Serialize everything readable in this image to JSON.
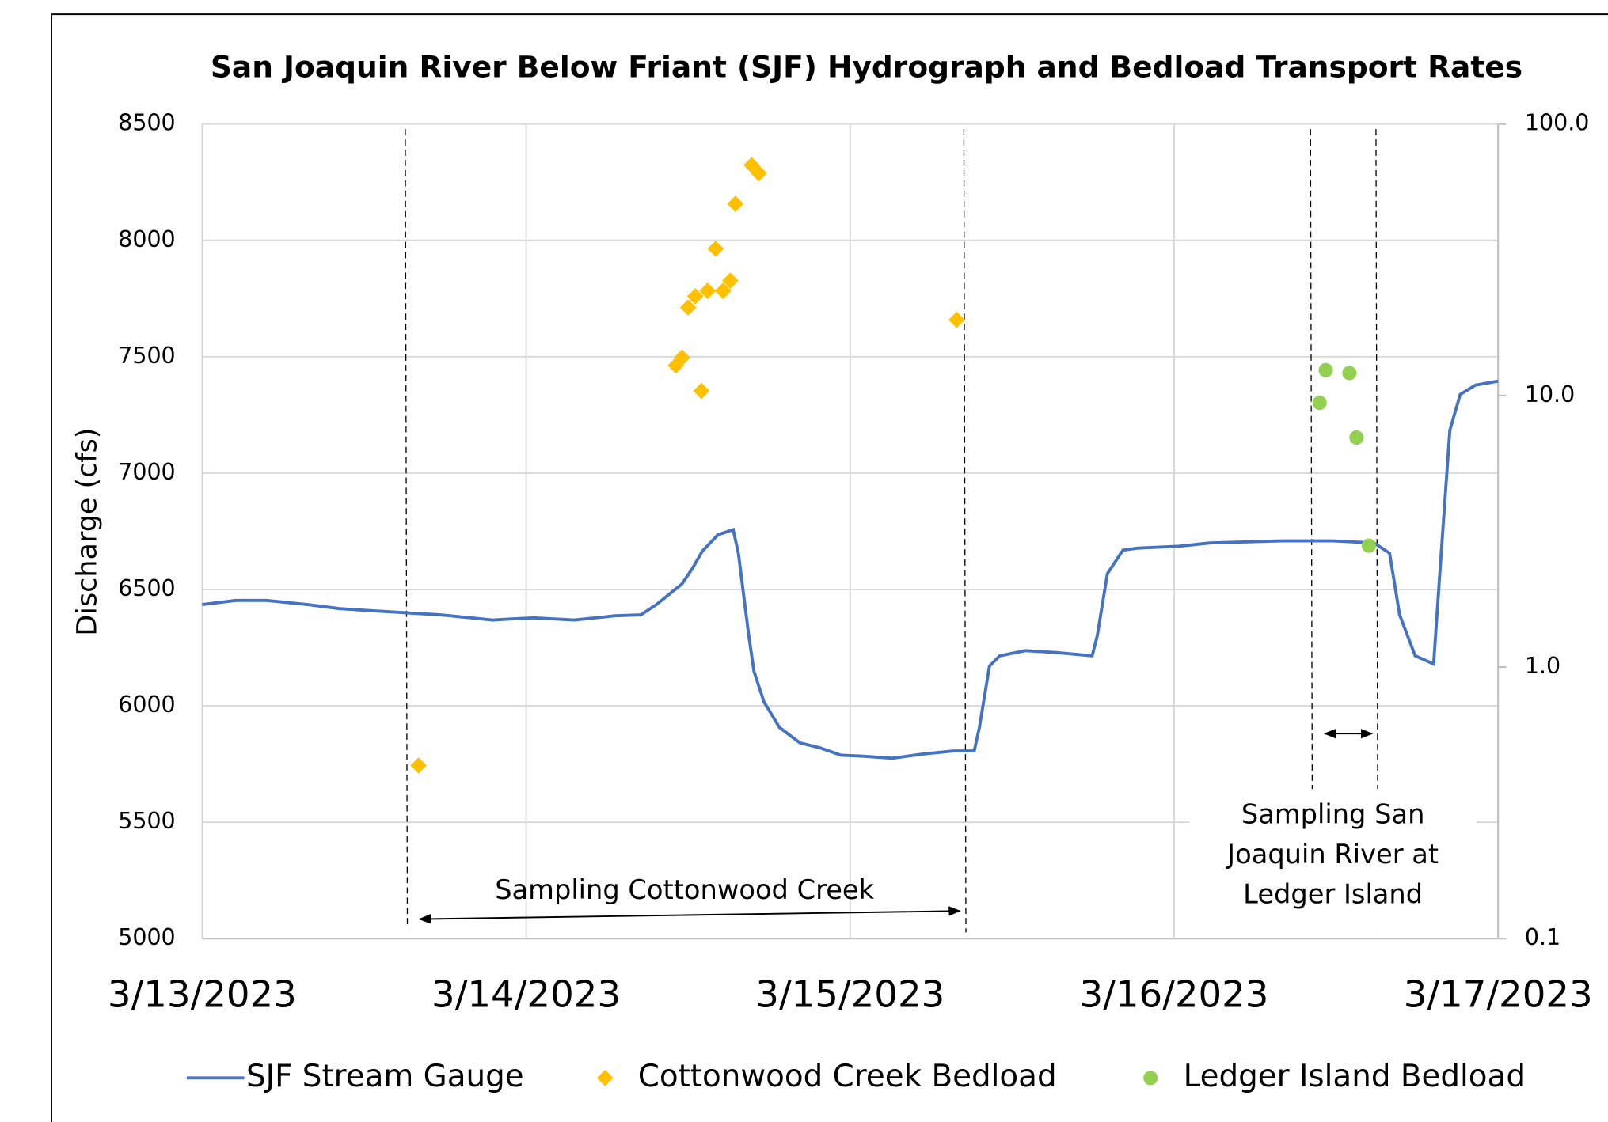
{
  "chart_data": {
    "type": "line",
    "title": "San Joaquin River Below Friant (SJF) Hydrograph and Bedload Transport Rates",
    "ylabel": "Discharge (cfs)",
    "xlim": [
      0,
      4
    ],
    "xticks": [
      {
        "value": 0,
        "label": "3/13/2023"
      },
      {
        "value": 1,
        "label": "3/14/2023"
      },
      {
        "value": 2,
        "label": "3/15/2023"
      },
      {
        "value": 3,
        "label": "3/16/2023"
      },
      {
        "value": 4,
        "label": "3/17/2023"
      }
    ],
    "ylim": [
      5000,
      8500
    ],
    "yticks": [
      5000,
      5500,
      6000,
      6500,
      7000,
      7500,
      8000,
      8500
    ],
    "y2lim": [
      0.1,
      100
    ],
    "y2log": true,
    "y2ticks": [
      0.1,
      {
        "value": 1,
        "label": "1.0"
      },
      {
        "value": 10,
        "label": "10.0"
      },
      {
        "value": 100,
        "label": "100.0"
      }
    ],
    "grid": true,
    "legend": "bottom",
    "series": [
      {
        "name": "SJF Stream Gauge",
        "type": "line",
        "color": "#4472c4",
        "x": [
          0,
          0.104,
          0.199,
          0.326,
          0.421,
          0.516,
          0.627,
          0.737,
          0.896,
          1.022,
          1.149,
          1.275,
          1.354,
          1.402,
          1.449,
          1.481,
          1.513,
          1.544,
          1.592,
          1.639,
          1.655,
          1.687,
          1.703,
          1.734,
          1.782,
          1.845,
          1.908,
          1.972,
          2.035,
          2.13,
          2.225,
          2.32,
          2.383,
          2.399,
          2.43,
          2.462,
          2.541,
          2.636,
          2.747,
          2.763,
          2.794,
          2.842,
          2.889,
          3.016,
          3.111,
          3.332,
          3.491,
          3.617,
          3.665,
          3.696,
          3.744,
          3.801,
          3.82,
          3.851,
          3.883,
          3.93,
          4
        ],
        "values": [
          6435,
          6453,
          6453,
          6435,
          6418,
          6409,
          6400,
          6391,
          6369,
          6378,
          6369,
          6387,
          6391,
          6435,
          6488,
          6524,
          6590,
          6665,
          6735,
          6757,
          6656,
          6303,
          6149,
          6017,
          5907,
          5841,
          5819,
          5788,
          5784,
          5775,
          5793,
          5806,
          5806,
          5907,
          6171,
          6215,
          6237,
          6229,
          6215,
          6303,
          6568,
          6669,
          6678,
          6686,
          6700,
          6709,
          6709,
          6700,
          6656,
          6391,
          6215,
          6180,
          6568,
          7184,
          7338,
          7378,
          7395
        ]
      },
      {
        "name": "Cottonwood Creek Bedload",
        "type": "scatter",
        "marker": "diamond",
        "axis": "y2",
        "color": "#ffc000",
        "x": [
          0.668,
          1.462,
          1.481,
          1.541,
          1.5,
          1.522,
          1.56,
          1.608,
          1.63,
          1.585,
          1.646,
          1.696,
          1.718,
          2.329
        ],
        "values": [
          0.434,
          12.9,
          13.8,
          10.4,
          21.1,
          23.2,
          24.3,
          24.3,
          26.5,
          34.7,
          50.8,
          70.6,
          65.9,
          19.0
        ]
      },
      {
        "name": "Ledger Island Bedload",
        "type": "scatter",
        "marker": "circle",
        "axis": "y2",
        "color": "#92d050",
        "x": [
          3.449,
          3.468,
          3.541,
          3.563,
          3.601
        ],
        "values": [
          9.4,
          12.4,
          12.1,
          7.0,
          2.8
        ]
      }
    ],
    "annotations": [
      {
        "lines": [
          "Sampling Cottonwood Creek"
        ],
        "x": [
          0.627,
          2.351
        ]
      },
      {
        "lines": [
          "Sampling San",
          "Joaquin River at",
          "Ledger Island"
        ],
        "x": [
          3.421,
          3.623
        ]
      }
    ]
  }
}
